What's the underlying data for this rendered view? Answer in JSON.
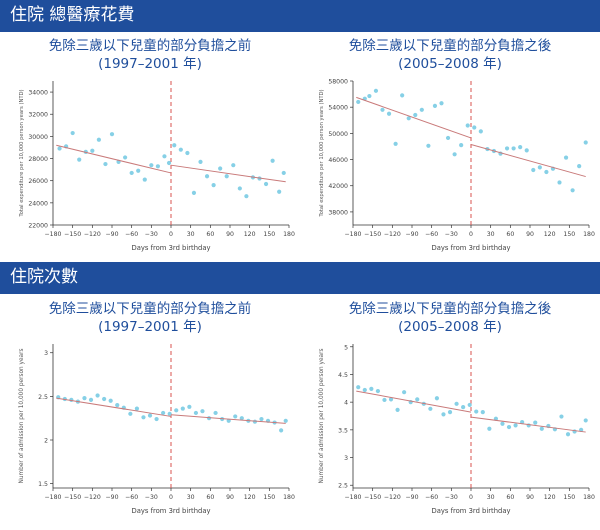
{
  "sections": {
    "total_cost": "住院 總醫療花費",
    "admissions": "住院次數"
  },
  "panels": {
    "before_title_1": "免除三歲以下兒童的部分負擔之前",
    "before_title_2": "(1997–2001 年)",
    "after_title_1": "免除三歲以下兒童的部分負擔之後",
    "after_title_2": "(2005–2008 年)"
  },
  "chart_data": [
    {
      "id": "cost_before",
      "type": "scatter",
      "xlabel": "Days from 3rd birthday",
      "ylabel": "Total expenditure per 10,000 person years (NTD)",
      "xlim": [
        -180,
        180
      ],
      "ylim": [
        22000,
        35000
      ],
      "xticks": [
        -180,
        -150,
        -120,
        -90,
        -60,
        -30,
        0,
        30,
        60,
        90,
        120,
        150,
        180
      ],
      "yticks": [
        22000,
        24000,
        26000,
        28000,
        30000,
        32000,
        34000
      ],
      "cutoff": 0,
      "fit_left": [
        [
          -175,
          29200
        ],
        [
          0,
          26700
        ]
      ],
      "fit_right": [
        [
          0,
          27400
        ],
        [
          175,
          25900
        ]
      ],
      "x": [
        -170,
        -160,
        -150,
        -140,
        -130,
        -120,
        -110,
        -100,
        -90,
        -80,
        -70,
        -60,
        -50,
        -40,
        -30,
        -20,
        -10,
        -3,
        5,
        15,
        25,
        35,
        45,
        55,
        65,
        75,
        85,
        95,
        105,
        115,
        125,
        135,
        145,
        155,
        165,
        172
      ],
      "y": [
        28900,
        29100,
        30300,
        27900,
        28600,
        28700,
        29700,
        27500,
        30200,
        27700,
        28100,
        26700,
        26900,
        26100,
        27400,
        27300,
        28200,
        27600,
        29200,
        28800,
        28500,
        24900,
        27700,
        26400,
        25600,
        27100,
        26400,
        27400,
        25300,
        24600,
        26300,
        26200,
        25700,
        27800,
        25000,
        26700
      ]
    },
    {
      "id": "cost_after",
      "type": "scatter",
      "xlabel": "Days from 3rd birthday",
      "ylabel": "Total expenditure per 10,000 person years (NTD)",
      "xlim": [
        -180,
        180
      ],
      "ylim": [
        36000,
        58000
      ],
      "xticks": [
        -180,
        -150,
        -120,
        -90,
        -60,
        -30,
        0,
        30,
        60,
        90,
        120,
        150,
        180
      ],
      "yticks": [
        38000,
        42000,
        46000,
        50000,
        54000,
        58000
      ],
      "cutoff": 0,
      "fit_left": [
        [
          -175,
          55500
        ],
        [
          0,
          49300
        ]
      ],
      "fit_right": [
        [
          0,
          48300
        ],
        [
          175,
          43400
        ]
      ],
      "x": [
        -172,
        -162,
        -155,
        -145,
        -135,
        -125,
        -115,
        -105,
        -95,
        -85,
        -75,
        -65,
        -55,
        -45,
        -35,
        -25,
        -15,
        -5,
        5,
        15,
        25,
        35,
        45,
        55,
        65,
        75,
        85,
        95,
        105,
        115,
        125,
        135,
        145,
        155,
        165,
        175
      ],
      "y": [
        54800,
        55300,
        55700,
        56500,
        53600,
        53000,
        48400,
        55800,
        52300,
        52800,
        53600,
        48100,
        54200,
        54600,
        49300,
        46800,
        48200,
        51200,
        50900,
        50300,
        47600,
        47300,
        46900,
        47700,
        47700,
        47900,
        47400,
        44400,
        44800,
        44100,
        44600,
        42500,
        46300,
        41300,
        45000,
        48600
      ]
    },
    {
      "id": "adm_before",
      "type": "scatter",
      "xlabel": "Days from 3rd birthday",
      "ylabel": "Number of admission per 10,000 person years",
      "xlim": [
        -180,
        180
      ],
      "ylim": [
        1.45,
        3.1
      ],
      "xticks": [
        -180,
        -150,
        -120,
        -90,
        -60,
        -30,
        0,
        30,
        60,
        90,
        120,
        150,
        180
      ],
      "ytick_labels": [
        "1.5",
        "2",
        "2.5",
        "3"
      ],
      "yticks": [
        1.5,
        2.0,
        2.5,
        3.0
      ],
      "cutoff": 0,
      "fit_left": [
        [
          -175,
          2.48
        ],
        [
          0,
          2.27
        ]
      ],
      "fit_right": [
        [
          0,
          2.29
        ],
        [
          175,
          2.19
        ]
      ],
      "x": [
        -172,
        -162,
        -152,
        -142,
        -132,
        -122,
        -112,
        -102,
        -92,
        -82,
        -72,
        -62,
        -52,
        -42,
        -32,
        -22,
        -12,
        -2,
        8,
        18,
        28,
        38,
        48,
        58,
        68,
        78,
        88,
        98,
        108,
        118,
        128,
        138,
        148,
        158,
        168,
        175
      ],
      "y": [
        2.49,
        2.47,
        2.46,
        2.44,
        2.48,
        2.46,
        2.51,
        2.47,
        2.45,
        2.4,
        2.37,
        2.3,
        2.36,
        2.26,
        2.28,
        2.24,
        2.31,
        2.3,
        2.34,
        2.36,
        2.38,
        2.31,
        2.33,
        2.25,
        2.31,
        2.24,
        2.22,
        2.27,
        2.25,
        2.22,
        2.21,
        2.24,
        2.22,
        2.2,
        2.11,
        2.22
      ]
    },
    {
      "id": "adm_after",
      "type": "scatter",
      "xlabel": "Days from 3rd birthday",
      "ylabel": "Number of admission per 10,000 person years",
      "xlim": [
        -180,
        180
      ],
      "ylim": [
        2.45,
        5.05
      ],
      "xticks": [
        -180,
        -150,
        -120,
        -90,
        -60,
        -30,
        0,
        30,
        60,
        90,
        120,
        150,
        180
      ],
      "ytick_labels": [
        "2.5",
        "3",
        "3.5",
        "4",
        "4.5",
        "5"
      ],
      "yticks": [
        2.5,
        3.0,
        3.5,
        4.0,
        4.5,
        5.0
      ],
      "cutoff": 0,
      "fit_left": [
        [
          -175,
          4.2
        ],
        [
          0,
          3.82
        ]
      ],
      "fit_right": [
        [
          0,
          3.73
        ],
        [
          175,
          3.46
        ]
      ],
      "x": [
        -172,
        -162,
        -152,
        -142,
        -132,
        -122,
        -112,
        -102,
        -92,
        -82,
        -72,
        -62,
        -52,
        -42,
        -32,
        -22,
        -12,
        -2,
        8,
        18,
        28,
        38,
        48,
        58,
        68,
        78,
        88,
        98,
        108,
        118,
        128,
        138,
        148,
        158,
        168,
        175
      ],
      "y": [
        4.27,
        4.22,
        4.24,
        4.2,
        4.04,
        4.05,
        3.86,
        4.18,
        4.0,
        4.05,
        3.97,
        3.88,
        4.07,
        3.78,
        3.82,
        3.97,
        3.91,
        3.95,
        3.83,
        3.82,
        3.52,
        3.7,
        3.61,
        3.55,
        3.58,
        3.64,
        3.58,
        3.63,
        3.52,
        3.57,
        3.51,
        3.74,
        3.42,
        3.47,
        3.5,
        3.67
      ]
    }
  ],
  "colors": {
    "band": "#1f4e9c",
    "title": "#1f4e9c",
    "point": "#86d0e6",
    "fit": "#c97a7a",
    "cutoff": "#d9534f",
    "axis": "#333333"
  }
}
